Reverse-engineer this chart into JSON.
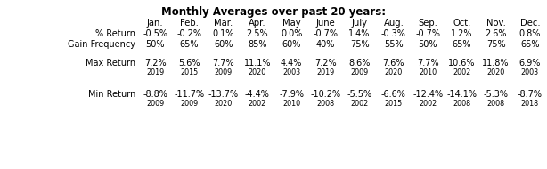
{
  "title": "Monthly Averages over past 20 years:",
  "months": [
    "Jan.",
    "Feb.",
    "Mar.",
    "Apr.",
    "May",
    "June",
    "July",
    "Aug.",
    "Sep.",
    "Oct.",
    "Nov.",
    "Dec."
  ],
  "pct_return_label": "% Return",
  "pct_return": [
    "-0.5%",
    "-0.2%",
    "0.1%",
    "2.5%",
    "0.0%",
    "-0.7%",
    "1.4%",
    "-0.3%",
    "-0.7%",
    "1.2%",
    "2.6%",
    "0.8%"
  ],
  "gain_freq_label": "Gain Frequency",
  "gain_freq": [
    "50%",
    "65%",
    "60%",
    "85%",
    "60%",
    "40%",
    "75%",
    "55%",
    "50%",
    "65%",
    "75%",
    "65%"
  ],
  "max_return_label": "Max Return",
  "max_return": [
    "7.2%",
    "5.6%",
    "7.7%",
    "11.1%",
    "4.4%",
    "7.2%",
    "8.6%",
    "7.6%",
    "7.7%",
    "10.6%",
    "11.8%",
    "6.9%"
  ],
  "max_return_year": [
    "2019",
    "2015",
    "2009",
    "2020",
    "2003",
    "2019",
    "2009",
    "2020",
    "2010",
    "2002",
    "2020",
    "2003"
  ],
  "min_return_label": "Min Return",
  "min_return": [
    "-8.8%",
    "-11.7%",
    "-13.7%",
    "-4.4%",
    "-7.9%",
    "-10.2%",
    "-5.5%",
    "-6.6%",
    "-12.4%",
    "-14.1%",
    "-5.3%",
    "-8.7%"
  ],
  "min_return_year": [
    "2009",
    "2009",
    "2020",
    "2002",
    "2010",
    "2008",
    "2002",
    "2015",
    "2002",
    "2008",
    "2008",
    "2018"
  ],
  "bg_color": "#ffffff",
  "title_fontsize": 8.5,
  "header_fontsize": 7.2,
  "data_fontsize": 7.0,
  "year_fontsize": 5.8
}
